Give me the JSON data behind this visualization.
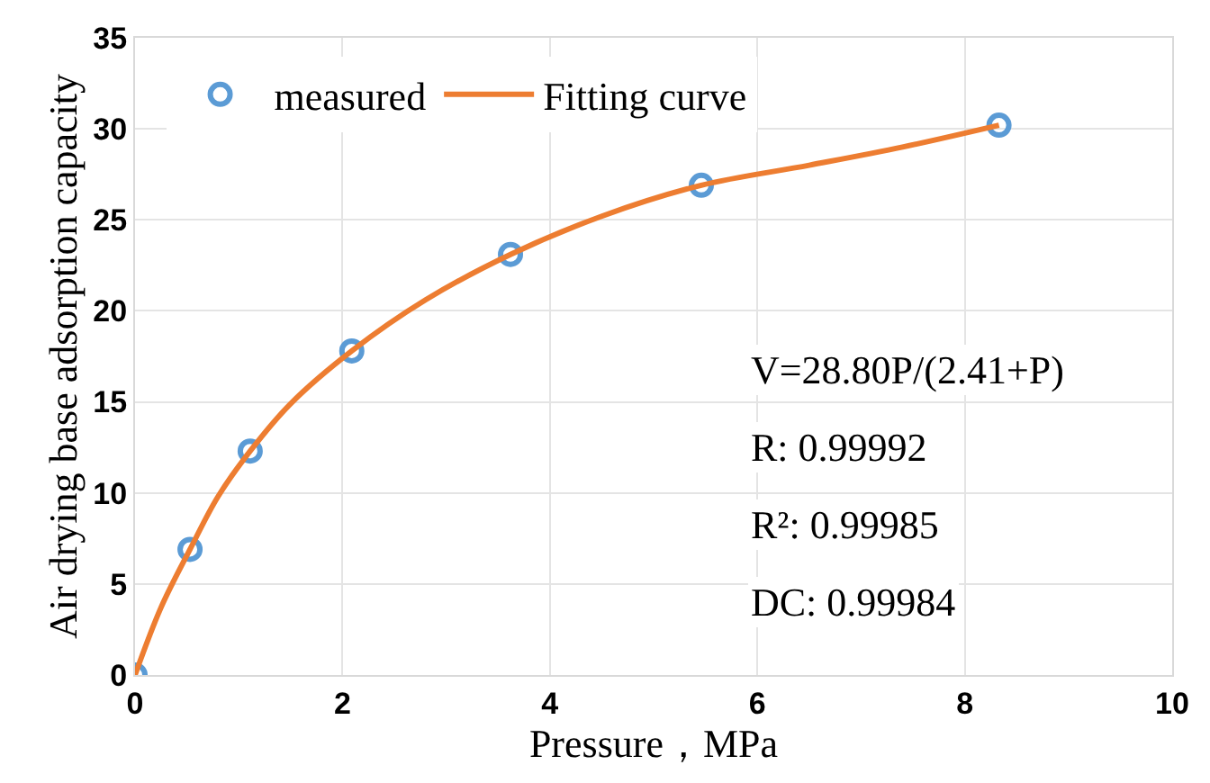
{
  "chart_data": {
    "type": "scatter",
    "xlabel": "Pressure，MPa",
    "ylabel": "Air drying base adsorption capacity",
    "xlim": [
      0,
      10
    ],
    "xticks": [
      0,
      2,
      4,
      6,
      8,
      10
    ],
    "ylim": [
      0,
      35
    ],
    "yticks": [
      0,
      5,
      10,
      15,
      20,
      25,
      30,
      35
    ],
    "grid": true,
    "legend": "top left",
    "series": [
      {
        "name": "measured",
        "marker": "circle",
        "color": "#5b9bd5",
        "x": [
          0,
          0.53,
          1.11,
          2.09,
          3.62,
          5.46,
          8.33
        ],
        "values": [
          0,
          6.9,
          12.3,
          17.8,
          23.1,
          26.9,
          30.2
        ]
      },
      {
        "name": "Fitting curve",
        "type": "line",
        "color": "#ed7d31",
        "x": [
          0,
          0.25,
          0.53,
          0.8,
          1.11,
          1.5,
          2.09,
          2.8,
          3.62,
          4.5,
          5.46,
          6.5,
          7.4,
          8.33
        ],
        "values": [
          0,
          3.7,
          6.9,
          9.8,
          12.3,
          14.9,
          17.8,
          20.6,
          23.1,
          25.2,
          26.9,
          28.0,
          29.0,
          30.2
        ]
      }
    ],
    "annotations": [
      "V=28.80P/(2.41+P)",
      "R: 0.99992",
      "R²: 0.99985",
      "DC: 0.99984"
    ]
  }
}
